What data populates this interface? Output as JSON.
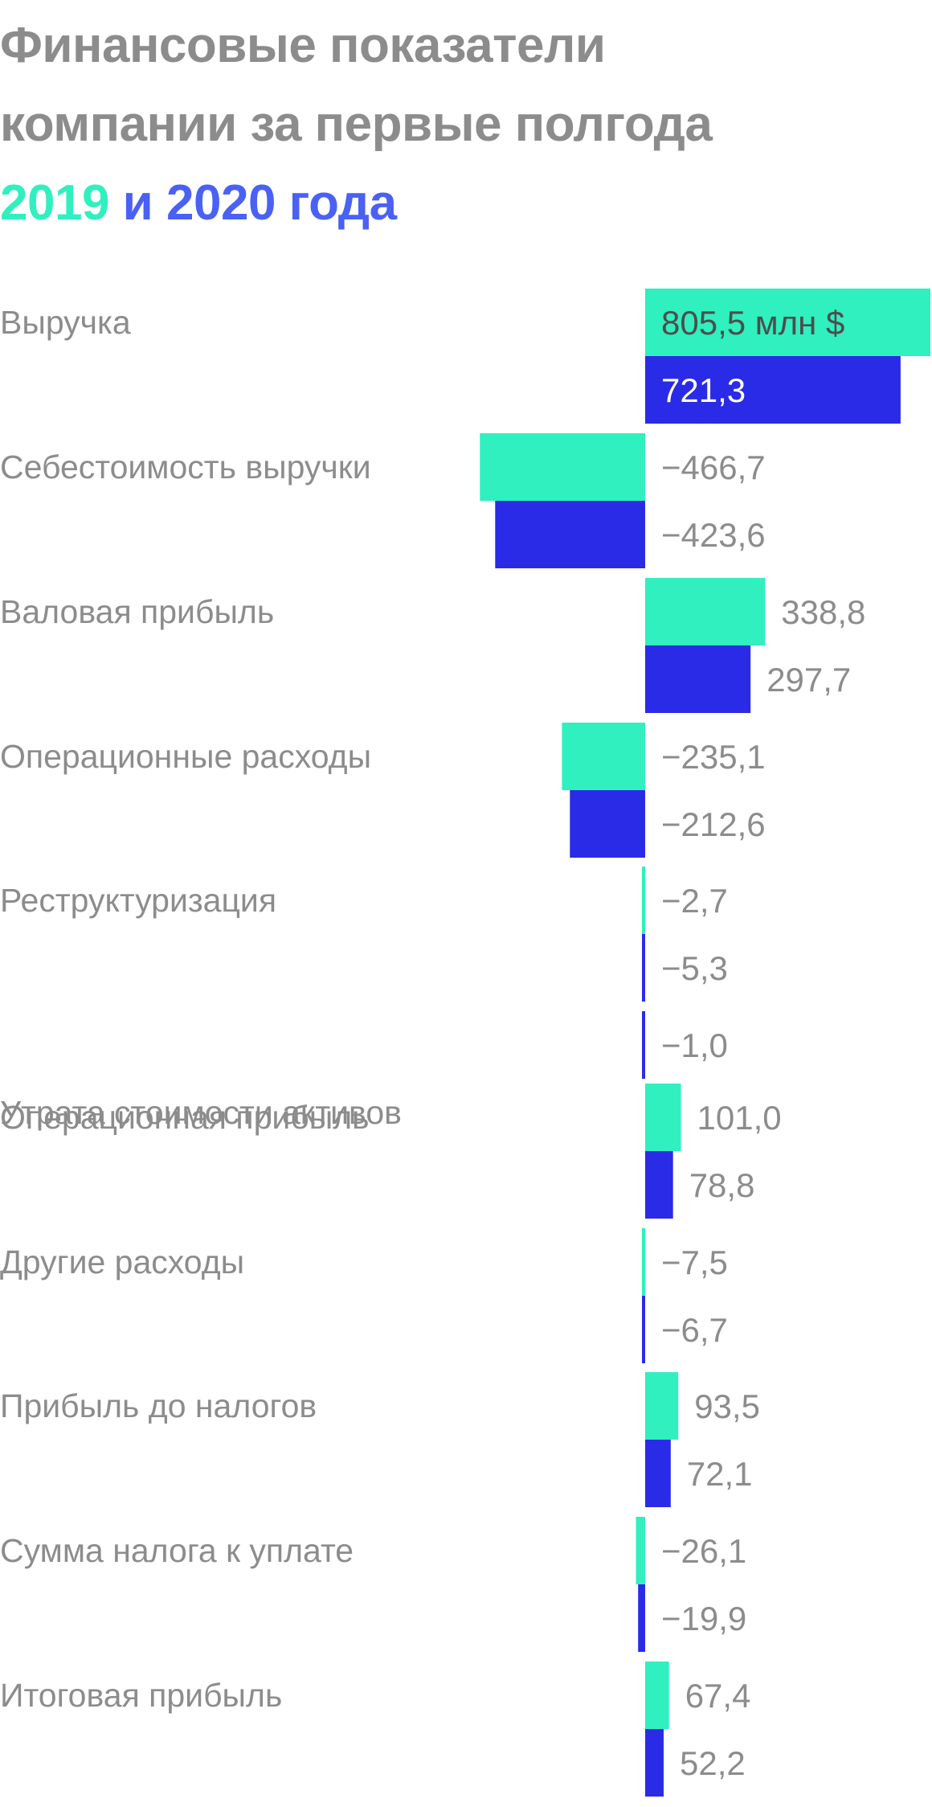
{
  "title": {
    "line1": "Финансовые показатели",
    "line2": "компании за первые полгода",
    "year1": "2019",
    "conj": " и ",
    "year2": "2020",
    "suffix": " года"
  },
  "colors": {
    "series_2019": "#2ff0be",
    "series_2020": "#2a2be6",
    "title_gray": "#8c8c8c",
    "title_2020": "#4a61f5"
  },
  "chart_data": {
    "type": "bar",
    "orientation": "horizontal",
    "unit_label": "млн $",
    "categories": [
      "Выручка",
      "Себестоимость выручки",
      "Валовая прибыль",
      "Операционные расходы",
      "Реструктуризация",
      "Утрата стоимости активов",
      "Операционная прибыль",
      "Другие расходы",
      "Прибыль до налогов",
      "Сумма налога к уплате",
      "Итоговая прибыль"
    ],
    "series": [
      {
        "name": "2019",
        "values": [
          805.5,
          -466.7,
          338.8,
          -235.1,
          -2.7,
          null,
          101.0,
          -7.5,
          93.5,
          -26.1,
          67.4
        ],
        "labels": [
          "805,5 млн $",
          "−466,7",
          "338,8",
          "−235,1",
          "−2,7",
          null,
          "101,0",
          "−7,5",
          "93,5",
          "−26,1",
          "67,4"
        ]
      },
      {
        "name": "2020",
        "values": [
          721.3,
          -423.6,
          297.7,
          -212.6,
          -5.3,
          -1.0,
          78.8,
          -6.7,
          72.1,
          -19.9,
          52.2
        ],
        "labels": [
          "721,3",
          "−423,6",
          "297,7",
          "−212,6",
          "−5,3",
          "−1,0",
          "78,8",
          "−6,7",
          "72,1",
          "−19,9",
          "52,2"
        ]
      }
    ]
  }
}
